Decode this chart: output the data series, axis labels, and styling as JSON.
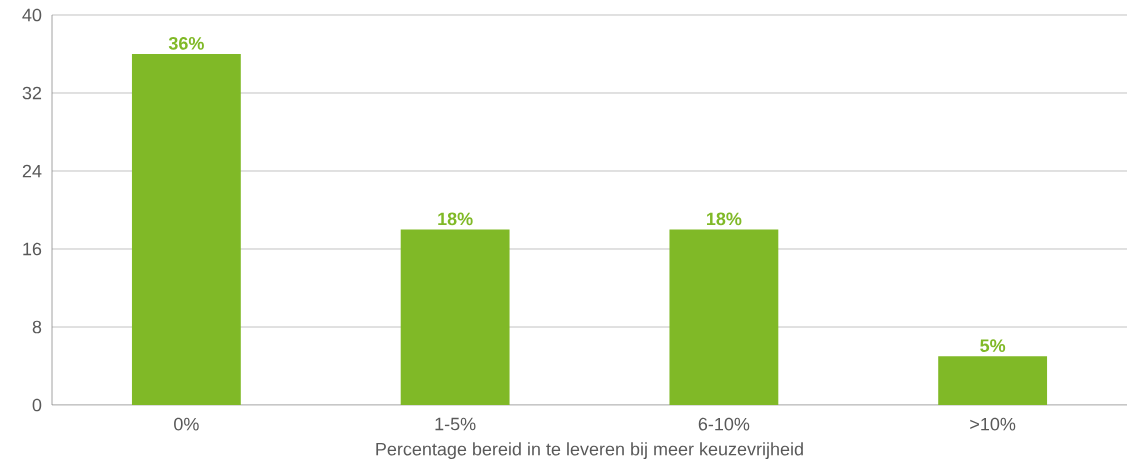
{
  "chart_data": {
    "type": "bar",
    "xlabel": "Percentage bereid in te leveren bij meer keuzevrijheid",
    "categories": [
      "0%",
      "1-5%",
      "6-10%",
      ">10%"
    ],
    "values": [
      36,
      18,
      18,
      5
    ],
    "value_labels": [
      "36%",
      "18%",
      "18%",
      "5%"
    ],
    "color": "#80b927",
    "ylim": [
      0,
      40
    ],
    "yticks": [
      0,
      8,
      16,
      24,
      32,
      40
    ],
    "grid": "y"
  }
}
